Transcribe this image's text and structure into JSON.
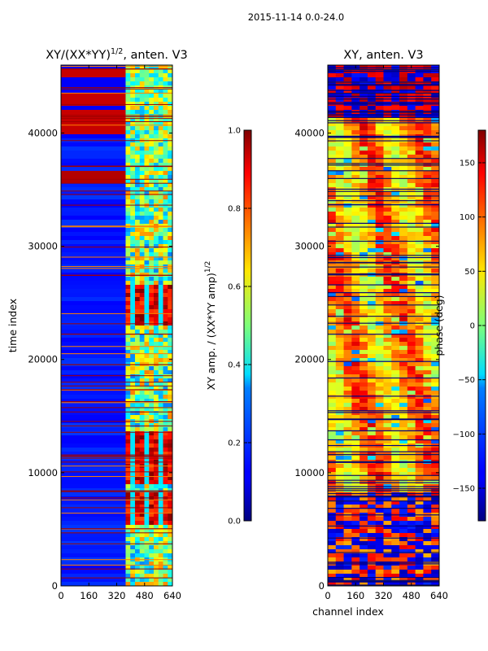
{
  "suptitle": "2015-11-14 0.0-24.0",
  "chart_data": [
    {
      "type": "heatmap",
      "title_prefix": "XY/(XX*YY)",
      "title_exponent": "1/2",
      "title_suffix": ", anten. V3",
      "xlabel": "",
      "ylabel": "time index",
      "xlim": [
        0,
        640
      ],
      "ylim": [
        0,
        46000
      ],
      "xticks": [
        0,
        160,
        320,
        480,
        640
      ],
      "xtick_labels": [
        "0",
        "160",
        "320",
        "480",
        "640"
      ],
      "yticks": [
        0,
        10000,
        20000,
        30000,
        40000
      ],
      "ytick_labels": [
        "0",
        "10000",
        "20000",
        "30000",
        "40000"
      ],
      "colormap": "jet",
      "colorbar": {
        "label_prefix": "XY amp. / (XX*YY amp)",
        "label_exponent": "1/2",
        "range": [
          0.0,
          1.0
        ],
        "ticks": [
          0.0,
          0.2,
          0.4,
          0.6,
          0.8,
          1.0
        ],
        "tick_labels": [
          "0.0",
          "0.2",
          "0.4",
          "0.6",
          "0.8",
          "1.0"
        ]
      }
    },
    {
      "type": "heatmap",
      "title": "XY, anten. V3",
      "xlabel": "channel index",
      "ylabel": "",
      "xlim": [
        0,
        640
      ],
      "ylim": [
        0,
        46000
      ],
      "xticks": [
        0,
        160,
        320,
        480,
        640
      ],
      "xtick_labels": [
        "0",
        "160",
        "320",
        "480",
        "640"
      ],
      "yticks": [
        0,
        10000,
        20000,
        30000,
        40000
      ],
      "ytick_labels": [
        "0",
        "10000",
        "20000",
        "30000",
        "40000"
      ],
      "colormap": "jet",
      "colorbar": {
        "label": "phase (deg)",
        "range": [
          -180,
          180
        ],
        "ticks": [
          -150,
          -100,
          -50,
          0,
          50,
          100,
          150
        ],
        "tick_labels": [
          "−150",
          "−100",
          "−50",
          "0",
          "50",
          "100",
          "150"
        ]
      }
    }
  ]
}
